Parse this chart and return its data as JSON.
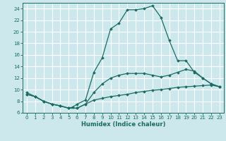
{
  "title": "",
  "xlabel": "Humidex (Indice chaleur)",
  "bg_color": "#cce8ed",
  "grid_color": "#ffffff",
  "line_color": "#1a6b60",
  "xlim": [
    -0.5,
    23.5
  ],
  "ylim": [
    6,
    25
  ],
  "xticks": [
    0,
    1,
    2,
    3,
    4,
    5,
    6,
    7,
    8,
    9,
    10,
    11,
    12,
    13,
    14,
    15,
    16,
    17,
    18,
    19,
    20,
    21,
    22,
    23
  ],
  "yticks": [
    6,
    8,
    10,
    12,
    14,
    16,
    18,
    20,
    22,
    24
  ],
  "series": [
    {
      "x": [
        0,
        1,
        2,
        3,
        4,
        5,
        6,
        7,
        8,
        9,
        10,
        11,
        12,
        13,
        14,
        15,
        16,
        17,
        18,
        19,
        20,
        21,
        22,
        23
      ],
      "y": [
        9.2,
        8.8,
        8.0,
        7.5,
        7.2,
        6.8,
        6.8,
        7.5,
        8.2,
        8.5,
        8.8,
        9.0,
        9.2,
        9.5,
        9.7,
        9.9,
        10.0,
        10.2,
        10.4,
        10.5,
        10.6,
        10.7,
        10.8,
        10.5
      ]
    },
    {
      "x": [
        0,
        1,
        2,
        3,
        4,
        5,
        6,
        7,
        8,
        9,
        10,
        11,
        12,
        13,
        14,
        15,
        16,
        17,
        18,
        19,
        20,
        21,
        22,
        23
      ],
      "y": [
        9.2,
        8.8,
        8.0,
        7.5,
        7.2,
        6.8,
        6.8,
        7.5,
        9.5,
        11.0,
        12.0,
        12.5,
        12.8,
        12.8,
        12.8,
        12.5,
        12.2,
        12.5,
        13.0,
        13.5,
        13.2,
        12.0,
        11.0,
        10.5
      ]
    },
    {
      "x": [
        0,
        1,
        2,
        3,
        4,
        5,
        5.5,
        6,
        7,
        8,
        9,
        10,
        11,
        12,
        13,
        14,
        15,
        16,
        17,
        18,
        19,
        20,
        21,
        22,
        23
      ],
      "y": [
        9.5,
        8.8,
        8.0,
        7.5,
        7.2,
        6.8,
        7.0,
        7.5,
        8.2,
        13.0,
        15.5,
        20.5,
        21.5,
        23.8,
        23.8,
        24.0,
        24.5,
        22.5,
        18.5,
        15.0,
        15.0,
        13.0,
        12.0,
        11.0,
        10.5
      ]
    }
  ]
}
